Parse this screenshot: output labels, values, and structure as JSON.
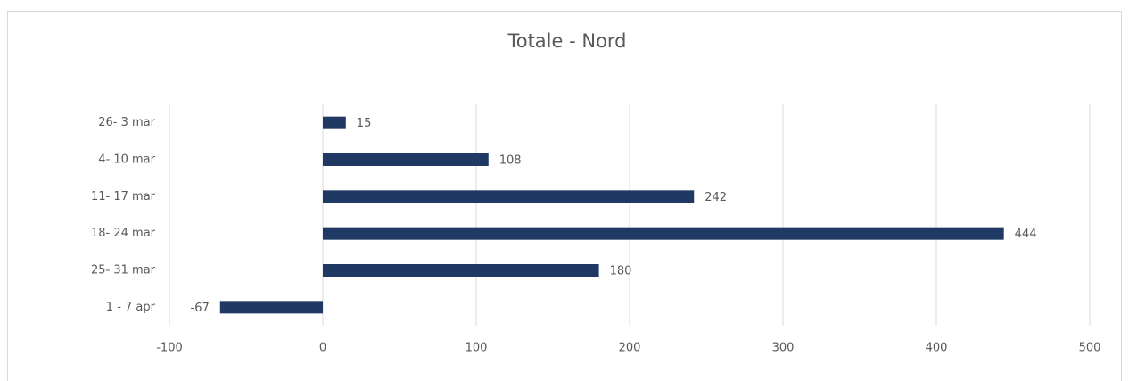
{
  "chart_data": {
    "type": "bar",
    "orientation": "horizontal",
    "title": "Totale - Nord",
    "categories": [
      "26- 3 mar",
      "4- 10 mar",
      "11- 17 mar",
      "18- 24 mar",
      "25- 31 mar",
      "1 - 7 apr"
    ],
    "values": [
      15,
      108,
      242,
      444,
      180,
      -67
    ],
    "color": "#203864",
    "xlim": [
      -100,
      500
    ],
    "xticks": [
      -100,
      0,
      100,
      200,
      300,
      400,
      500
    ],
    "grid": true
  }
}
